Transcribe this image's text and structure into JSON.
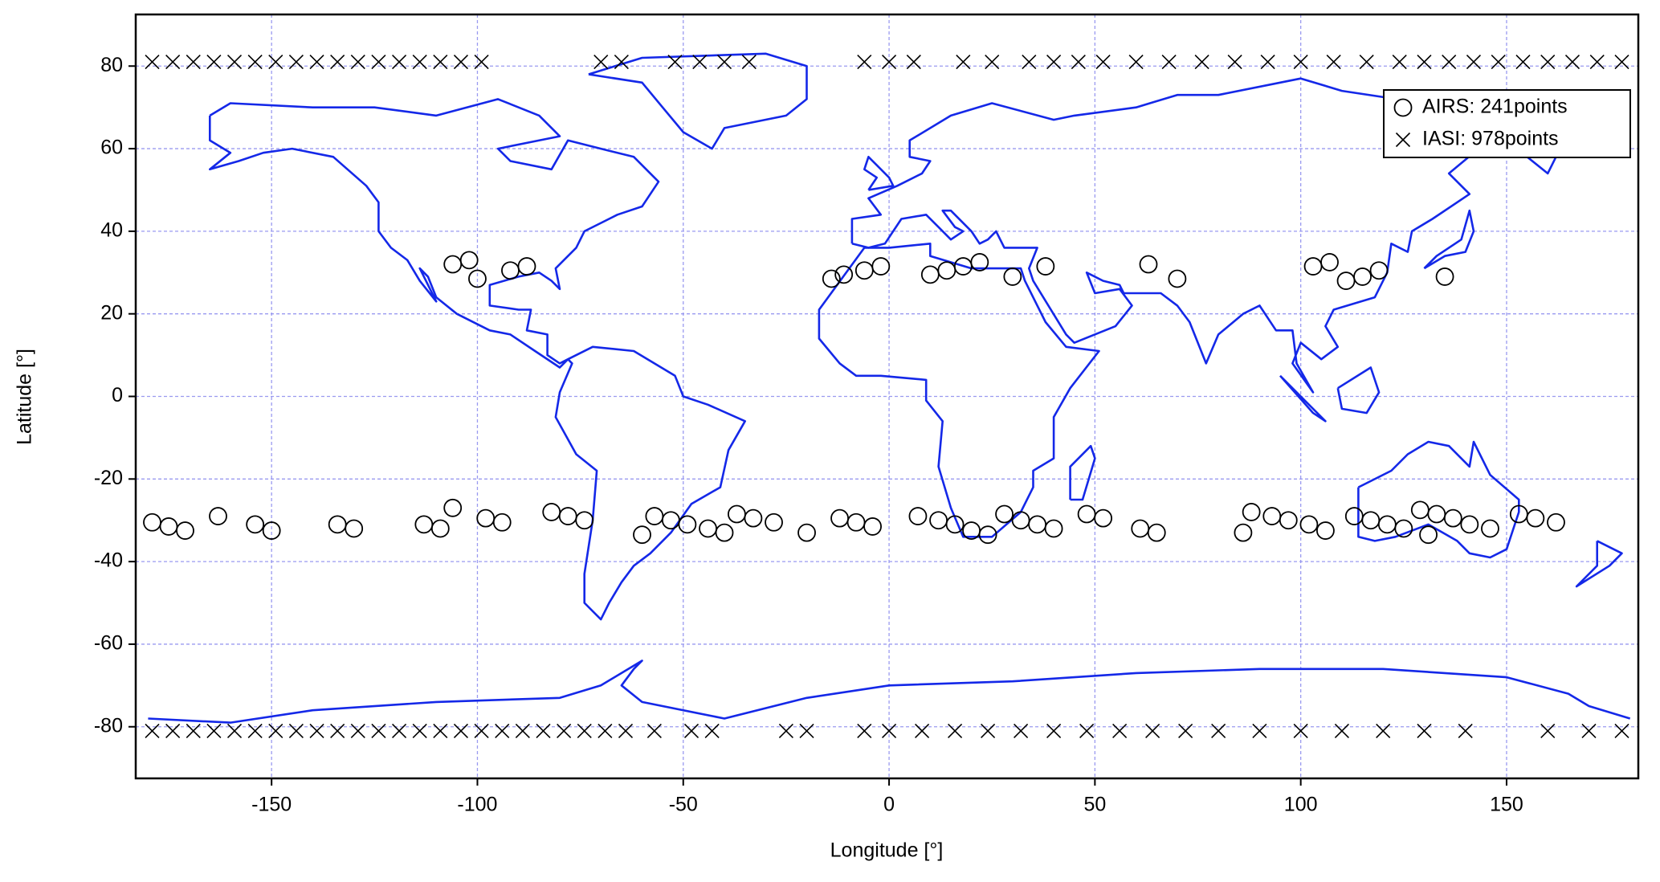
{
  "chart_data": {
    "type": "scatter",
    "x_label": "Longitude [°]",
    "y_label": "Latitude [°]",
    "xlim": [
      -183,
      182
    ],
    "ylim": [
      -92.5,
      92.5
    ],
    "xticks": [
      -150,
      -100,
      -50,
      0,
      50,
      100,
      150
    ],
    "yticks": [
      -80,
      -60,
      -40,
      -20,
      0,
      20,
      40,
      60,
      80
    ],
    "grid": true,
    "legend": "upper right",
    "series": [
      {
        "name": "AIRS: 241points",
        "marker": "circle",
        "color": "#000000",
        "x": [
          -106,
          -102,
          -100,
          -92,
          -88,
          -14,
          -11,
          -6,
          -2,
          10,
          14,
          18,
          22,
          30,
          38,
          63,
          70,
          103,
          107,
          111,
          115,
          119,
          135,
          -179,
          -175,
          -171,
          -163,
          -154,
          -150,
          -134,
          -130,
          -113,
          -109,
          -106,
          -98,
          -94,
          -82,
          -78,
          -74,
          -60,
          -57,
          -53,
          -49,
          -44,
          -40,
          -37,
          -33,
          -28,
          -20,
          -12,
          -8,
          -4,
          7,
          12,
          16,
          20,
          24,
          28,
          32,
          36,
          40,
          48,
          52,
          61,
          65,
          86,
          88,
          93,
          97,
          102,
          106,
          113,
          117,
          121,
          125,
          129,
          131,
          133,
          137,
          141,
          146,
          153,
          157,
          162
        ],
        "y": [
          32,
          33,
          28.5,
          30.5,
          31.5,
          28.5,
          29.5,
          30.5,
          31.5,
          29.5,
          30.5,
          31.5,
          32.5,
          29,
          31.5,
          32,
          28.5,
          31.5,
          32.5,
          28,
          29,
          30.5,
          29,
          -30.5,
          -31.5,
          -32.5,
          -29,
          -31,
          -32.5,
          -31,
          -32,
          -31,
          -32,
          -27,
          -29.5,
          -30.5,
          -28,
          -29,
          -30,
          -33.5,
          -29,
          -30,
          -31,
          -32,
          -33,
          -28.5,
          -29.5,
          -30.5,
          -33,
          -29.5,
          -30.5,
          -31.5,
          -29,
          -30,
          -31,
          -32.5,
          -33.5,
          -28.5,
          -30,
          -31,
          -32,
          -28.5,
          -29.5,
          -32,
          -33,
          -33,
          -28,
          -29,
          -30,
          -31,
          -32.5,
          -29,
          -30,
          -31,
          -32,
          -27.5,
          -33.5,
          -28.5,
          -29.5,
          -31,
          -32,
          -28.5,
          -29.5,
          -30.5
        ]
      },
      {
        "name": "IASI: 978points",
        "marker": "x",
        "color": "#000000",
        "x": [
          -179,
          -174,
          -169,
          -164,
          -159,
          -154,
          -149,
          -144,
          -139,
          -134,
          -129,
          -124,
          -119,
          -114,
          -109,
          -104,
          -99,
          -70,
          -65,
          -52,
          -46,
          -40,
          -34,
          -6,
          0,
          6,
          18,
          25,
          34,
          40,
          46,
          52,
          60,
          68,
          76,
          84,
          92,
          100,
          108,
          116,
          124,
          130,
          136,
          142,
          148,
          154,
          160,
          166,
          172,
          178,
          -179,
          -174,
          -169,
          -164,
          -159,
          -154,
          -149,
          -144,
          -139,
          -134,
          -129,
          -124,
          -119,
          -114,
          -109,
          -104,
          -99,
          -94,
          -89,
          -84,
          -79,
          -74,
          -69,
          -64,
          -57,
          -48,
          -43,
          -25,
          -20,
          -6,
          0,
          8,
          16,
          24,
          32,
          40,
          48,
          56,
          64,
          72,
          80,
          90,
          100,
          110,
          120,
          130,
          140,
          160,
          170,
          178
        ],
        "y": [
          81,
          81,
          81,
          81,
          81,
          81,
          81,
          81,
          81,
          81,
          81,
          81,
          81,
          81,
          81,
          81,
          81,
          81,
          81,
          81,
          81,
          81,
          81,
          81,
          81,
          81,
          81,
          81,
          81,
          81,
          81,
          81,
          81,
          81,
          81,
          81,
          81,
          81,
          81,
          81,
          81,
          81,
          81,
          81,
          81,
          81,
          81,
          81,
          81,
          81,
          -81,
          -81,
          -81,
          -81,
          -81,
          -81,
          -81,
          -81,
          -81,
          -81,
          -81,
          -81,
          -81,
          -81,
          -81,
          -81,
          -81,
          -81,
          -81,
          -81,
          -81,
          -81,
          -81,
          -81,
          -81,
          -81,
          -81,
          -81,
          -81,
          -81,
          -81,
          -81,
          -81,
          -81,
          -81,
          -81,
          -81,
          -81,
          -81,
          -81,
          -81,
          -81,
          -81,
          -81,
          -81,
          -81,
          -81,
          -81,
          -81,
          -81
        ]
      }
    ]
  }
}
